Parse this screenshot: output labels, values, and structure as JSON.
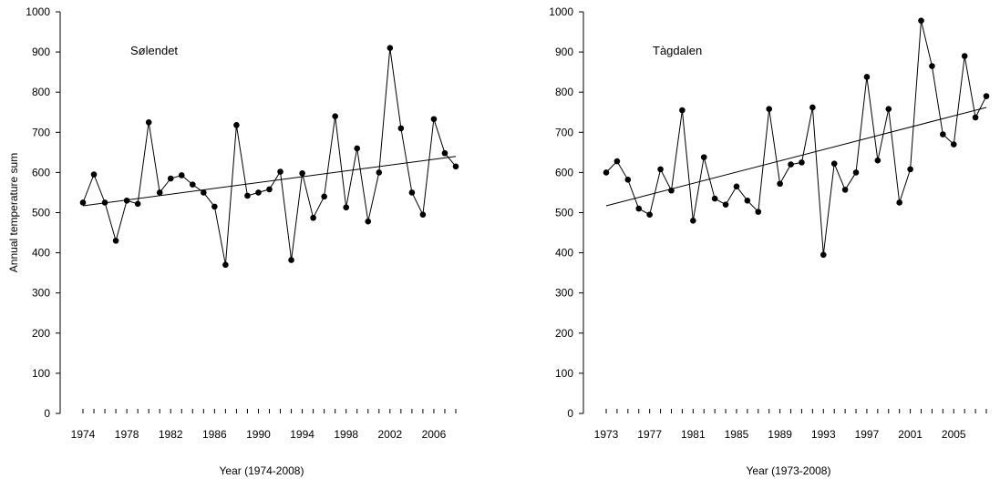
{
  "chart_data": [
    {
      "type": "scatter",
      "panel_label": "Sølendet",
      "xlabel": "Year (1974-2008)",
      "ylabel": "Annual temperature sum",
      "xlim": [
        1974,
        2008
      ],
      "ylim": [
        0,
        1000
      ],
      "yticks": [
        0,
        100,
        200,
        300,
        400,
        500,
        600,
        700,
        800,
        900,
        1000
      ],
      "xtick_labels": [
        "1974",
        "1978",
        "1982",
        "1986",
        "1990",
        "1994",
        "1998",
        "2002",
        "2006"
      ],
      "x": [
        1974,
        1975,
        1976,
        1977,
        1978,
        1979,
        1980,
        1981,
        1982,
        1983,
        1984,
        1985,
        1986,
        1987,
        1988,
        1989,
        1990,
        1991,
        1992,
        1993,
        1994,
        1995,
        1996,
        1997,
        1998,
        1999,
        2000,
        2001,
        2002,
        2003,
        2004,
        2005,
        2006,
        2007,
        2008
      ],
      "y": [
        525,
        595,
        525,
        430,
        530,
        522,
        725,
        550,
        585,
        593,
        570,
        550,
        515,
        370,
        718,
        542,
        550,
        558,
        602,
        382,
        598,
        487,
        540,
        740,
        513,
        660,
        478,
        600,
        910,
        710,
        550,
        495,
        733,
        648,
        615
      ],
      "trend": {
        "x": [
          1974,
          2008
        ],
        "y": [
          517,
          640
        ]
      },
      "grid": false,
      "legend": "none"
    },
    {
      "type": "scatter",
      "panel_label": "Tàgdalen",
      "xlabel": "Year (1973-2008)",
      "ylabel": "",
      "xlim": [
        1973,
        2008
      ],
      "ylim": [
        0,
        1000
      ],
      "yticks": [
        0,
        100,
        200,
        300,
        400,
        500,
        600,
        700,
        800,
        900,
        1000
      ],
      "xtick_labels": [
        "1973",
        "1977",
        "1981",
        "1985",
        "1989",
        "1993",
        "1997",
        "2001",
        "2005"
      ],
      "x": [
        1973,
        1974,
        1975,
        1976,
        1977,
        1978,
        1979,
        1980,
        1981,
        1982,
        1983,
        1984,
        1985,
        1986,
        1987,
        1988,
        1989,
        1990,
        1991,
        1992,
        1993,
        1994,
        1995,
        1996,
        1997,
        1998,
        1999,
        2000,
        2001,
        2002,
        2003,
        2004,
        2005,
        2006,
        2007,
        2008
      ],
      "y": [
        600,
        628,
        582,
        510,
        495,
        608,
        555,
        755,
        480,
        638,
        535,
        520,
        565,
        530,
        502,
        758,
        572,
        620,
        625,
        762,
        395,
        622,
        557,
        600,
        838,
        630,
        758,
        525,
        608,
        978,
        865,
        695,
        670,
        890,
        737,
        790
      ],
      "trend": {
        "x": [
          1973,
          2008
        ],
        "y": [
          517,
          762
        ]
      },
      "grid": false,
      "legend": "none"
    }
  ]
}
